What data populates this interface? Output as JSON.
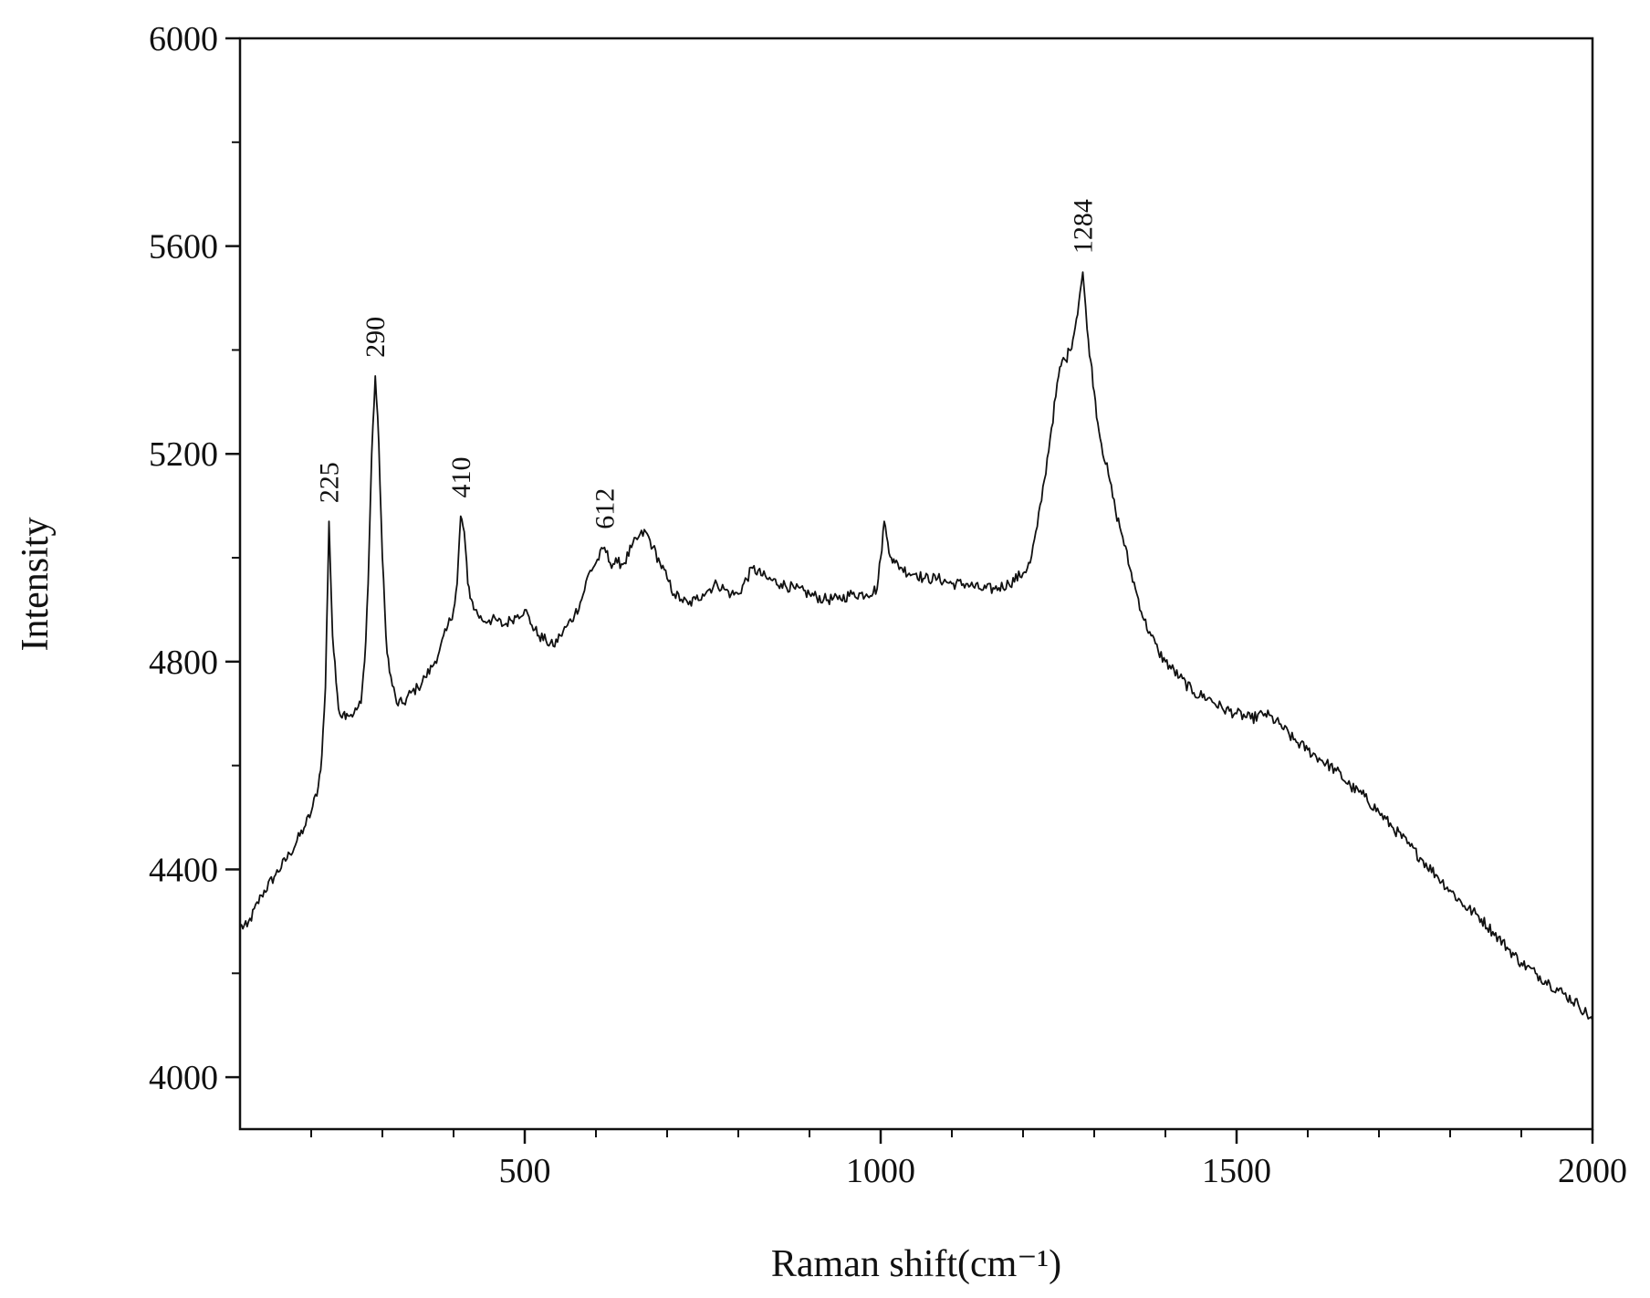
{
  "chart_data": {
    "type": "line",
    "title": "",
    "xlabel": "Raman shift(cm⁻¹)",
    "ylabel": "Intensity",
    "xlim": [
      100,
      2000
    ],
    "ylim": [
      3900,
      6000
    ],
    "grid": false,
    "legend": "none",
    "line_color": "#111111",
    "x_ticks": [
      500,
      1000,
      1500,
      2000
    ],
    "y_ticks": [
      4000,
      4400,
      4800,
      5200,
      5600,
      6000
    ],
    "series": [
      {
        "x": [
          100,
          110,
          130,
          150,
          170,
          190,
          200,
          210,
          215,
          220,
          225,
          230,
          235,
          240,
          245,
          250,
          260,
          270,
          275,
          280,
          285,
          290,
          295,
          300,
          305,
          310,
          320,
          330,
          340,
          350,
          360,
          370,
          380,
          390,
          400,
          405,
          410,
          415,
          420,
          425,
          430,
          440,
          450,
          460,
          470,
          480,
          490,
          500,
          510,
          520,
          530,
          540,
          550,
          560,
          570,
          580,
          590,
          600,
          612,
          620,
          630,
          640,
          650,
          660,
          670,
          680,
          690,
          700,
          710,
          720,
          730,
          740,
          750,
          760,
          770,
          780,
          790,
          800,
          820,
          840,
          860,
          880,
          900,
          920,
          940,
          960,
          980,
          995,
          1000,
          1005,
          1010,
          1015,
          1020,
          1030,
          1040,
          1050,
          1060,
          1080,
          1100,
          1120,
          1140,
          1160,
          1180,
          1200,
          1210,
          1220,
          1230,
          1240,
          1250,
          1255,
          1260,
          1265,
          1270,
          1275,
          1280,
          1284,
          1290,
          1295,
          1300,
          1305,
          1310,
          1320,
          1330,
          1340,
          1350,
          1360,
          1370,
          1380,
          1390,
          1400,
          1420,
          1440,
          1460,
          1480,
          1500,
          1520,
          1540,
          1560,
          1580,
          1600,
          1620,
          1640,
          1660,
          1680,
          1700,
          1720,
          1740,
          1760,
          1780,
          1800,
          1820,
          1840,
          1860,
          1880,
          1900,
          1920,
          1940,
          1960,
          1980,
          2000
        ],
        "y": [
          4290,
          4290,
          4350,
          4390,
          4430,
          4480,
          4510,
          4560,
          4620,
          4750,
          5070,
          4850,
          4760,
          4700,
          4700,
          4700,
          4700,
          4720,
          4800,
          4950,
          5200,
          5350,
          5220,
          5000,
          4850,
          4780,
          4720,
          4720,
          4740,
          4750,
          4770,
          4790,
          4820,
          4860,
          4900,
          4950,
          5080,
          5050,
          4950,
          4920,
          4900,
          4880,
          4880,
          4880,
          4870,
          4880,
          4890,
          4900,
          4870,
          4850,
          4840,
          4830,
          4850,
          4870,
          4890,
          4920,
          4970,
          4990,
          5020,
          4990,
          4990,
          4990,
          5020,
          5040,
          5050,
          5020,
          4990,
          4960,
          4930,
          4920,
          4910,
          4920,
          4930,
          4940,
          4950,
          4940,
          4930,
          4930,
          4980,
          4960,
          4950,
          4940,
          4930,
          4920,
          4920,
          4930,
          4930,
          4940,
          5000,
          5070,
          5030,
          5000,
          4990,
          4980,
          4970,
          4970,
          4960,
          4960,
          4950,
          4950,
          4940,
          4940,
          4950,
          4970,
          4990,
          5060,
          5150,
          5250,
          5350,
          5380,
          5380,
          5400,
          5420,
          5460,
          5510,
          5550,
          5440,
          5380,
          5320,
          5260,
          5220,
          5160,
          5090,
          5040,
          4980,
          4930,
          4880,
          4850,
          4820,
          4800,
          4770,
          4740,
          4730,
          4710,
          4700,
          4690,
          4700,
          4680,
          4650,
          4630,
          4610,
          4590,
          4560,
          4540,
          4510,
          4480,
          4450,
          4420,
          4390,
          4360,
          4330,
          4310,
          4280,
          4250,
          4220,
          4200,
          4180,
          4160,
          4140,
          4110
        ]
      }
    ],
    "annotations": [
      {
        "text": "225",
        "x": 225,
        "y": 5070
      },
      {
        "text": "290",
        "x": 290,
        "y": 5350
      },
      {
        "text": "410",
        "x": 410,
        "y": 5080
      },
      {
        "text": "612",
        "x": 612,
        "y": 5020
      },
      {
        "text": "1284",
        "x": 1284,
        "y": 5550
      }
    ]
  }
}
